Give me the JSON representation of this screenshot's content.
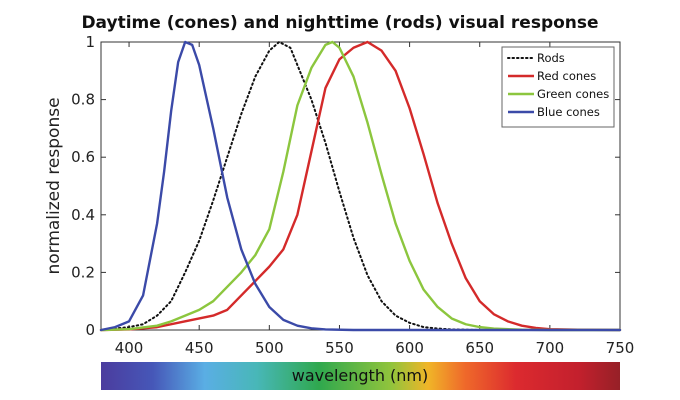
{
  "chart_data": {
    "type": "line",
    "title": "Daytime (cones) and nighttime (rods) visual response",
    "xlabel": "wavelength (nm)",
    "ylabel": "normalized response",
    "xlim": [
      380,
      750
    ],
    "ylim": [
      0,
      1
    ],
    "xticks": [
      400,
      450,
      500,
      550,
      600,
      650,
      700,
      750
    ],
    "yticks": [
      0,
      0.2,
      0.4,
      0.6,
      0.8,
      1
    ],
    "ytick_labels": [
      "0",
      "0.2",
      "0.4",
      "0.6",
      "0.8",
      "1"
    ],
    "grid": false,
    "legend_position": "top-right",
    "series": [
      {
        "name": "Rods",
        "color": "#111111",
        "dash": "dotted",
        "x": [
          380,
          400,
          410,
          420,
          430,
          440,
          450,
          460,
          470,
          480,
          490,
          500,
          507,
          515,
          520,
          530,
          540,
          550,
          560,
          570,
          580,
          590,
          600,
          610,
          620,
          630,
          640,
          650,
          660,
          680,
          700,
          750
        ],
        "y": [
          0,
          0.01,
          0.02,
          0.05,
          0.1,
          0.2,
          0.31,
          0.45,
          0.6,
          0.75,
          0.88,
          0.97,
          1.0,
          0.98,
          0.92,
          0.8,
          0.65,
          0.48,
          0.32,
          0.19,
          0.1,
          0.05,
          0.025,
          0.01,
          0.005,
          0.002,
          0.001,
          0,
          0,
          0,
          0,
          0
        ]
      },
      {
        "name": "Red cones",
        "color": "#d42a2a",
        "x": [
          380,
          400,
          420,
          440,
          450,
          460,
          470,
          480,
          490,
          500,
          510,
          520,
          530,
          540,
          550,
          560,
          570,
          580,
          590,
          600,
          610,
          620,
          630,
          640,
          650,
          660,
          670,
          680,
          690,
          700,
          720,
          750
        ],
        "y": [
          0,
          0.002,
          0.01,
          0.03,
          0.04,
          0.05,
          0.07,
          0.12,
          0.17,
          0.22,
          0.28,
          0.4,
          0.62,
          0.84,
          0.94,
          0.98,
          1.0,
          0.97,
          0.9,
          0.77,
          0.61,
          0.44,
          0.3,
          0.18,
          0.1,
          0.055,
          0.03,
          0.015,
          0.007,
          0.003,
          0.001,
          0
        ]
      },
      {
        "name": "Green cones",
        "color": "#8cc63e",
        "x": [
          380,
          400,
          420,
          430,
          440,
          450,
          460,
          470,
          480,
          490,
          500,
          510,
          520,
          530,
          540,
          545,
          550,
          560,
          570,
          580,
          590,
          600,
          610,
          620,
          630,
          640,
          650,
          660,
          680,
          700,
          750
        ],
        "y": [
          0,
          0.003,
          0.015,
          0.03,
          0.05,
          0.07,
          0.1,
          0.15,
          0.2,
          0.26,
          0.35,
          0.55,
          0.78,
          0.91,
          0.99,
          1.0,
          0.98,
          0.88,
          0.72,
          0.54,
          0.37,
          0.24,
          0.14,
          0.08,
          0.04,
          0.02,
          0.01,
          0.005,
          0.001,
          0,
          0
        ]
      },
      {
        "name": "Blue cones",
        "color": "#3b4aa8",
        "x": [
          380,
          390,
          400,
          410,
          420,
          425,
          430,
          435,
          440,
          445,
          450,
          455,
          460,
          465,
          470,
          480,
          490,
          500,
          510,
          520,
          530,
          540,
          560,
          600,
          650,
          700,
          750
        ],
        "y": [
          0,
          0.01,
          0.03,
          0.12,
          0.37,
          0.55,
          0.76,
          0.93,
          1.0,
          0.99,
          0.92,
          0.81,
          0.7,
          0.58,
          0.46,
          0.28,
          0.16,
          0.08,
          0.035,
          0.015,
          0.006,
          0.002,
          0,
          0,
          0,
          0,
          0
        ]
      }
    ]
  }
}
